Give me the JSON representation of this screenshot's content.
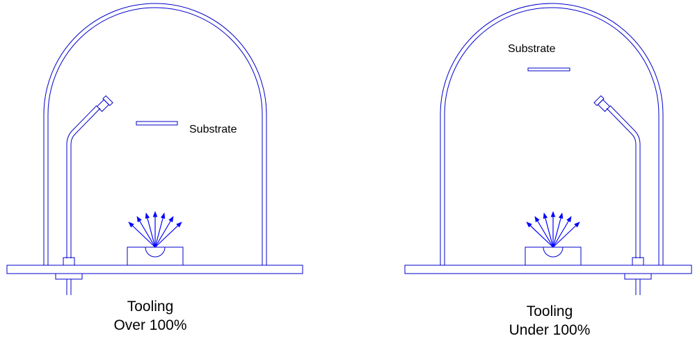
{
  "panels": [
    {
      "substrate_label": "Substrate",
      "caption_line1": "Tooling",
      "caption_line2": "Over 100%"
    },
    {
      "substrate_label": "Substrate",
      "caption_line1": "Tooling",
      "caption_line2": "Under 100%"
    }
  ],
  "colors": {
    "line": "#0000cc",
    "arrow": "#0000ff",
    "text": "#000000"
  }
}
